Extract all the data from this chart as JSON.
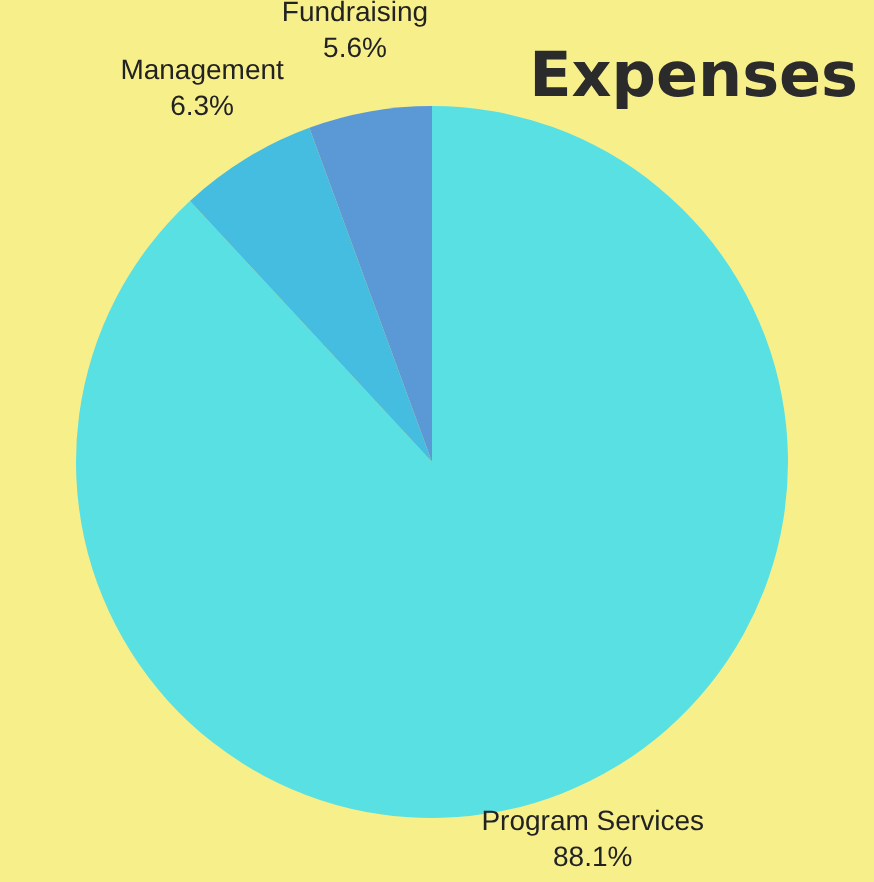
{
  "chart_data": {
    "type": "pie",
    "title": "Expenses",
    "categories": [
      "Program Services",
      "Management",
      "Fundraising"
    ],
    "values": [
      88.1,
      6.3,
      5.6
    ],
    "colors": [
      "#58e0e3",
      "#45bde0",
      "#5b98d6"
    ],
    "value_labels": [
      "88.1%",
      "6.3%",
      "5.6%"
    ],
    "legend": false
  }
}
